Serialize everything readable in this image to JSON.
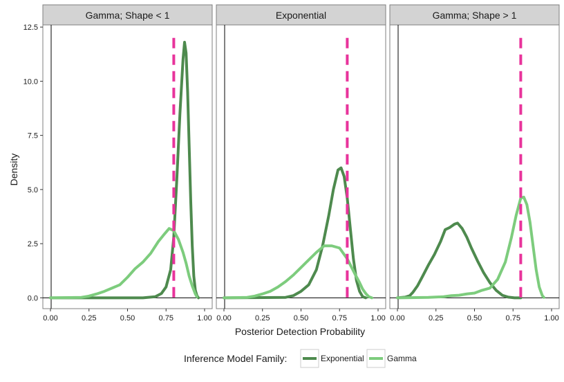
{
  "chart_data": {
    "type": "line",
    "xlabel": "Posterior Detection Probability",
    "ylabel": "Density",
    "xlim": [
      0,
      1
    ],
    "ylim": [
      -0.5,
      12.6
    ],
    "x_ticks": [
      "0.00",
      "0.25",
      "0.50",
      "0.75",
      "1.00"
    ],
    "y_ticks": [
      "0.0",
      "2.5",
      "5.0",
      "7.5",
      "10.0",
      "12.5"
    ],
    "grid": false,
    "reference_line": {
      "x": 0.8,
      "style": "dashed",
      "color": "#e8339b"
    },
    "legend": {
      "position": "bottom",
      "title": "Inference Model Family:",
      "entries": [
        {
          "name": "Exponential",
          "color": "#4e8a4e"
        },
        {
          "name": "Gamma",
          "color": "#7dcc7d"
        }
      ]
    },
    "panels": [
      {
        "title": "Gamma; Shape < 1",
        "series": [
          {
            "name": "Exponential",
            "color": "#4e8a4e",
            "x": [
              0.0,
              0.6,
              0.68,
              0.72,
              0.75,
              0.78,
              0.8,
              0.82,
              0.84,
              0.86,
              0.87,
              0.88,
              0.89,
              0.9,
              0.91,
              0.92,
              0.93,
              0.94,
              0.95,
              0.96
            ],
            "y": [
              0.0,
              0.0,
              0.05,
              0.2,
              0.5,
              1.3,
              2.8,
              5.5,
              8.5,
              11.0,
              11.8,
              11.3,
              9.5,
              7.0,
              4.5,
              2.4,
              1.0,
              0.35,
              0.1,
              0.0
            ]
          },
          {
            "name": "Gamma",
            "color": "#7dcc7d",
            "x": [
              0.0,
              0.2,
              0.25,
              0.3,
              0.35,
              0.4,
              0.45,
              0.5,
              0.55,
              0.6,
              0.65,
              0.7,
              0.74,
              0.77,
              0.8,
              0.83,
              0.86,
              0.88,
              0.9,
              0.92,
              0.94,
              0.95
            ],
            "y": [
              0.0,
              0.02,
              0.08,
              0.18,
              0.3,
              0.45,
              0.6,
              0.95,
              1.35,
              1.65,
              2.05,
              2.6,
              2.95,
              3.2,
              3.1,
              2.7,
              2.1,
              1.6,
              1.0,
              0.55,
              0.18,
              0.05
            ]
          }
        ]
      },
      {
        "title": "Exponential",
        "series": [
          {
            "name": "Exponential",
            "color": "#4e8a4e",
            "x": [
              0.0,
              0.4,
              0.45,
              0.5,
              0.55,
              0.6,
              0.64,
              0.68,
              0.71,
              0.74,
              0.76,
              0.78,
              0.8,
              0.82,
              0.84,
              0.86,
              0.88,
              0.9,
              0.92
            ],
            "y": [
              0.0,
              0.02,
              0.1,
              0.3,
              0.6,
              1.3,
              2.4,
              3.8,
              5.0,
              5.9,
              6.0,
              5.6,
              4.6,
              3.2,
              1.8,
              0.8,
              0.3,
              0.05,
              0.0
            ]
          },
          {
            "name": "Gamma",
            "color": "#7dcc7d",
            "x": [
              0.0,
              0.15,
              0.2,
              0.25,
              0.3,
              0.35,
              0.4,
              0.45,
              0.5,
              0.55,
              0.6,
              0.65,
              0.7,
              0.75,
              0.8,
              0.85,
              0.88,
              0.9,
              0.92,
              0.94,
              0.96
            ],
            "y": [
              0.0,
              0.02,
              0.08,
              0.18,
              0.3,
              0.5,
              0.75,
              1.05,
              1.4,
              1.75,
              2.1,
              2.4,
              2.4,
              2.3,
              1.8,
              1.1,
              0.7,
              0.4,
              0.2,
              0.05,
              0.0
            ]
          }
        ]
      },
      {
        "title": "Gamma; Shape > 1",
        "series": [
          {
            "name": "Exponential",
            "color": "#4e8a4e",
            "x": [
              0.0,
              0.05,
              0.08,
              0.1,
              0.13,
              0.16,
              0.2,
              0.24,
              0.28,
              0.31,
              0.34,
              0.37,
              0.39,
              0.42,
              0.45,
              0.48,
              0.52,
              0.56,
              0.6,
              0.64,
              0.68,
              0.72,
              0.76,
              0.8
            ],
            "y": [
              0.0,
              0.03,
              0.1,
              0.25,
              0.55,
              0.95,
              1.5,
              2.0,
              2.6,
              3.15,
              3.25,
              3.4,
              3.45,
              3.2,
              2.8,
              2.3,
              1.7,
              1.15,
              0.7,
              0.35,
              0.12,
              0.03,
              0.0,
              0.0
            ]
          },
          {
            "name": "Gamma",
            "color": "#7dcc7d",
            "x": [
              0.0,
              0.2,
              0.3,
              0.35,
              0.4,
              0.45,
              0.5,
              0.55,
              0.6,
              0.65,
              0.7,
              0.74,
              0.77,
              0.8,
              0.82,
              0.84,
              0.86,
              0.88,
              0.9,
              0.92,
              0.94,
              0.95
            ],
            "y": [
              0.0,
              0.02,
              0.05,
              0.1,
              0.12,
              0.18,
              0.22,
              0.35,
              0.45,
              0.85,
              1.65,
              2.8,
              3.8,
              4.6,
              4.65,
              4.3,
              3.5,
              2.4,
              1.3,
              0.5,
              0.1,
              0.02
            ]
          }
        ]
      }
    ]
  }
}
